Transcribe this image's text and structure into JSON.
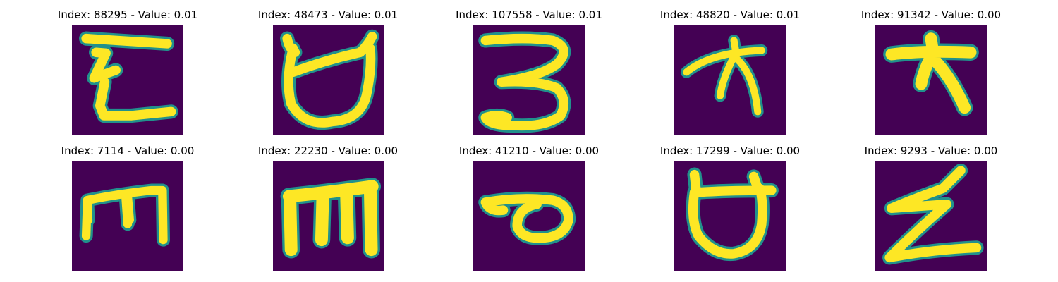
{
  "colors": {
    "background": "#440154",
    "mid": "#21918c",
    "stroke": "#fde725"
  },
  "panels": [
    {
      "title": "Index: 88295 - Value: 0.01",
      "glyph": "glyph-e-squiggle-icon"
    },
    {
      "title": "Index: 48473 - Value: 0.01",
      "glyph": "glyph-cup-icon"
    },
    {
      "title": "Index: 107558 - Value: 0.01",
      "glyph": "glyph-three-icon"
    },
    {
      "title": "Index: 48820 - Value: 0.01",
      "glyph": "glyph-tree-icon"
    },
    {
      "title": "Index: 91342 - Value: 0.00",
      "glyph": "glyph-tree-bold-icon"
    },
    {
      "title": "Index: 7114 - Value: 0.00",
      "glyph": "glyph-comb-icon"
    },
    {
      "title": "Index: 22230 - Value: 0.00",
      "glyph": "glyph-m-block-icon"
    },
    {
      "title": "Index: 41210 - Value: 0.00",
      "glyph": "glyph-loop-icon"
    },
    {
      "title": "Index: 17299 - Value: 0.00",
      "glyph": "glyph-cup-round-icon"
    },
    {
      "title": "Index: 9293 - Value: 0.00",
      "glyph": "glyph-z-icon"
    }
  ]
}
